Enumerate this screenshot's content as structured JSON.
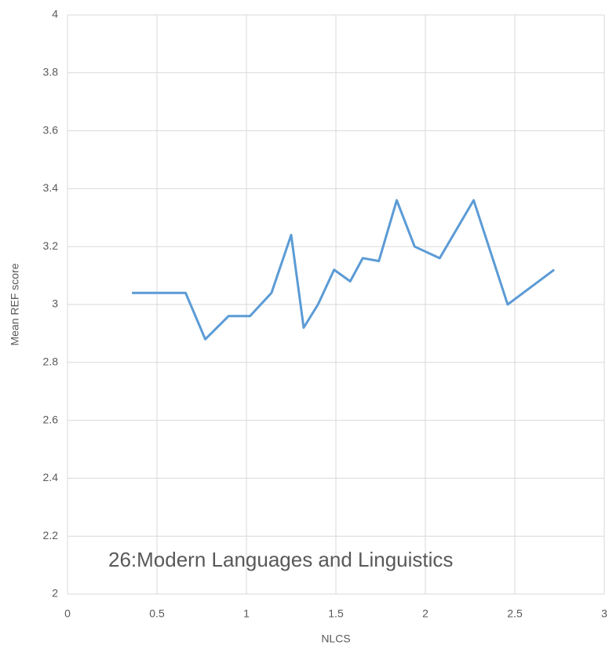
{
  "chart_data": {
    "type": "line",
    "annotation": "26:Modern Languages and Linguistics",
    "x_label": "NLCS",
    "y_label": "Mean REF score",
    "x": [
      0.36,
      0.66,
      0.77,
      0.9,
      1.02,
      1.14,
      1.25,
      1.32,
      1.4,
      1.49,
      1.58,
      1.65,
      1.74,
      1.84,
      1.94,
      2.08,
      2.27,
      2.46,
      2.72
    ],
    "series": [
      {
        "name": "Mean REF score",
        "color": "#5b9bd5",
        "values": [
          3.04,
          3.04,
          2.88,
          2.96,
          2.96,
          3.04,
          3.24,
          2.92,
          3.0,
          3.12,
          3.08,
          3.16,
          3.15,
          3.36,
          3.2,
          3.16,
          3.36,
          3.0,
          3.12
        ]
      }
    ],
    "xlim": [
      0,
      3
    ],
    "xticks": [
      0,
      0.5,
      1,
      1.5,
      2,
      2.5,
      3
    ],
    "ylim": [
      2,
      4
    ],
    "yticks": [
      2,
      2.2,
      2.4,
      2.6,
      2.8,
      3,
      3.2,
      3.4,
      3.6,
      3.8,
      4
    ],
    "grid": true
  }
}
